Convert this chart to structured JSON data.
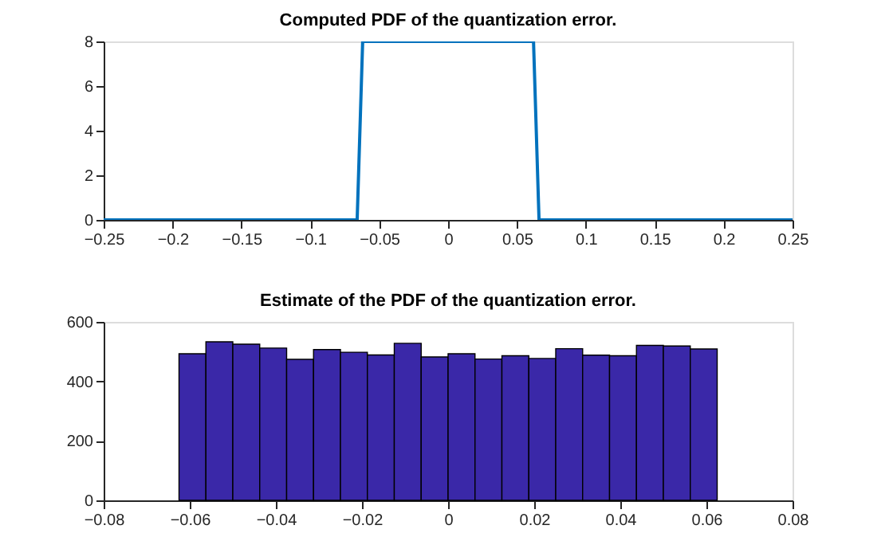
{
  "chart_data": [
    {
      "type": "line",
      "title": "Computed PDF of the quantization error.",
      "x": [
        -0.25,
        -0.066,
        -0.062,
        0.062,
        0.066,
        0.25
      ],
      "series": [
        {
          "color": "#0072bd",
          "values": [
            0,
            0,
            8,
            8,
            0,
            0
          ]
        }
      ],
      "xlim": [
        -0.25,
        0.25
      ],
      "xticks": [
        -0.25,
        -0.2,
        -0.15,
        -0.1,
        -0.05,
        0,
        0.05,
        0.1,
        0.15,
        0.2,
        0.25
      ],
      "ylim": [
        0,
        8
      ],
      "yticks": [
        0,
        2,
        4,
        6,
        8
      ],
      "grid": false,
      "line_style": "solid"
    },
    {
      "type": "histogram",
      "title": "Estimate of the PDF of the quantization error.",
      "bins": [
        -0.0625,
        -0.05625,
        -0.05,
        -0.04375,
        -0.0375,
        -0.03125,
        -0.025,
        -0.01875,
        -0.0125,
        -0.00625,
        0,
        0.00625,
        0.0125,
        0.01875,
        0.025,
        0.03125,
        0.0375,
        0.04375,
        0.05,
        0.05625,
        0.0625
      ],
      "values": [
        493,
        533,
        525,
        512,
        474,
        507,
        498,
        489,
        528,
        482,
        493,
        475,
        486,
        477,
        510,
        488,
        486,
        521,
        519,
        509
      ],
      "color": "#3a28a8",
      "xlim": [
        -0.08,
        0.08
      ],
      "xticks": [
        -0.08,
        -0.06,
        -0.04,
        -0.02,
        0,
        0.02,
        0.04,
        0.06,
        0.08
      ],
      "ylim": [
        0,
        600
      ],
      "yticks": [
        0,
        200,
        400,
        600
      ],
      "grid": false
    }
  ]
}
